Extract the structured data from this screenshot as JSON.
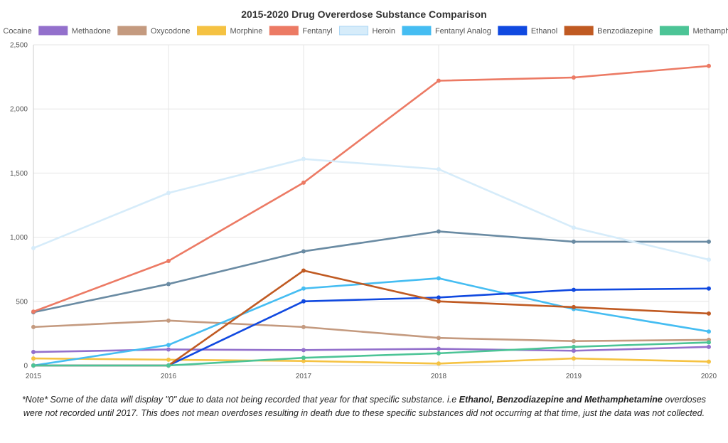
{
  "chart_data": {
    "type": "line",
    "title": "2015-2020 Drug Overerdose Substance Comparison",
    "x": [
      "2015",
      "2016",
      "2017",
      "2018",
      "2019",
      "2020"
    ],
    "ylim": [
      0,
      2500
    ],
    "yticks": [
      "0",
      "500",
      "1,000",
      "1,500",
      "2,000",
      "2,500"
    ],
    "ytick_values": [
      0,
      500,
      1000,
      1500,
      2000,
      2500
    ],
    "grid": true,
    "legend_position": "top",
    "series": [
      {
        "name": "Cocaine",
        "color": "#6a8ba3",
        "values": [
          415,
          635,
          890,
          1045,
          965,
          965
        ]
      },
      {
        "name": "Methadone",
        "color": "#9370cc",
        "values": [
          105,
          125,
          120,
          130,
          115,
          145
        ]
      },
      {
        "name": "Oxycodone",
        "color": "#c49a7f",
        "values": [
          300,
          350,
          300,
          215,
          190,
          200
        ]
      },
      {
        "name": "Morphine",
        "color": "#f5c242",
        "values": [
          55,
          45,
          35,
          15,
          55,
          30
        ]
      },
      {
        "name": "Fentanyl",
        "color": "#ec7a64",
        "values": [
          420,
          815,
          1425,
          2220,
          2245,
          2335
        ]
      },
      {
        "name": "Heroin",
        "color": "#d6ecfa",
        "values": [
          915,
          1345,
          1610,
          1530,
          1075,
          825
        ]
      },
      {
        "name": "Fentanyl Analog",
        "color": "#45bdf2",
        "values": [
          0,
          160,
          600,
          680,
          440,
          265
        ]
      },
      {
        "name": "Ethanol",
        "color": "#1049e0",
        "values": [
          0,
          0,
          500,
          530,
          590,
          600
        ]
      },
      {
        "name": "Benzodiazepine",
        "color": "#c05a22",
        "values": [
          0,
          0,
          740,
          500,
          455,
          405
        ]
      },
      {
        "name": "Methamphetamine",
        "color": "#4cc496",
        "values": [
          0,
          0,
          60,
          95,
          145,
          180
        ]
      }
    ]
  },
  "note": {
    "prefix": "*Note* Some of the data will display \"0\" due to data not being recorded that year for that specific substance. i.e ",
    "bold": "Ethanol, Benzodiazepine and Methamphetamine",
    "suffix": " overdoses were not recorded until 2017. This does not mean overdoses resulting in death due to these specific substances did not occurring at that time, just the data was not collected."
  }
}
